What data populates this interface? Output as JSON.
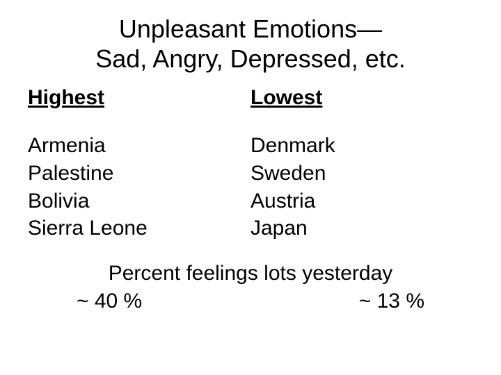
{
  "title_line1": "Unpleasant Emotions—",
  "title_line2": "Sad, Angry, Depressed, etc.",
  "columns": {
    "left": {
      "header": "Highest",
      "items": [
        "Armenia",
        "Palestine",
        "Bolivia",
        "Sierra Leone"
      ]
    },
    "right": {
      "header": "Lowest",
      "items": [
        "Denmark",
        "Sweden",
        "Austria",
        "Japan"
      ]
    }
  },
  "footer": {
    "title": "Percent feelings lots yesterday",
    "left_value": "~ 40 %",
    "right_value": "~ 13 %"
  },
  "style": {
    "background_color": "#ffffff",
    "text_color": "#000000",
    "font_family": "Arial, Helvetica, sans-serif",
    "title_fontsize": 36,
    "header_fontsize": 30,
    "item_fontsize": 30,
    "footer_fontsize": 30
  }
}
